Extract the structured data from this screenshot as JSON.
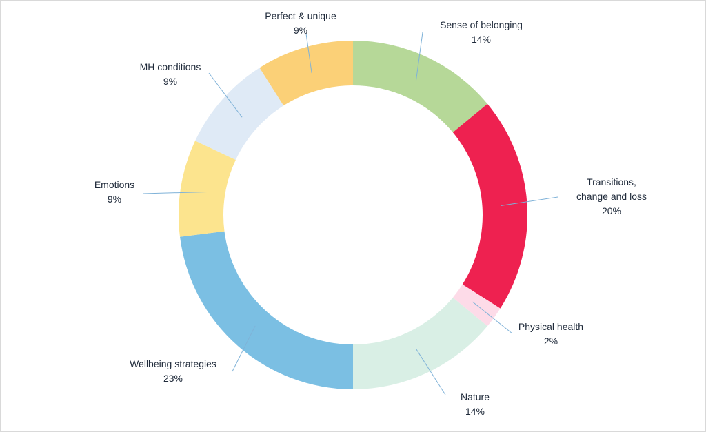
{
  "chart_data": {
    "type": "donut",
    "start_angle": "top, clockwise",
    "segments": [
      {
        "label": "Sense of belonging",
        "value_label": "14%",
        "value": 14,
        "color": "#b6d898"
      },
      {
        "label": "Transitions, change and loss",
        "label_lines": [
          "Transitions,",
          "change and loss"
        ],
        "value_label": "20%",
        "value": 20,
        "color": "#ee2150"
      },
      {
        "label": "Physical health",
        "value_label": "2%",
        "value": 2,
        "color": "#fddbe8"
      },
      {
        "label": "Nature",
        "value_label": "14%",
        "value": 14,
        "color": "#d9efe5"
      },
      {
        "label": "Wellbeing strategies",
        "value_label": "23%",
        "value": 23,
        "color": "#7bbfe3"
      },
      {
        "label": "Emotions",
        "value_label": "9%",
        "value": 9,
        "color": "#fce48e"
      },
      {
        "label": "MH conditions",
        "value_label": "9%",
        "value": 9,
        "color": "#dfeaf6"
      },
      {
        "label": "Perfect & unique",
        "value_label": "9%",
        "value": 9,
        "color": "#fbd077"
      }
    ],
    "leader_color": "#7fb2d8"
  }
}
